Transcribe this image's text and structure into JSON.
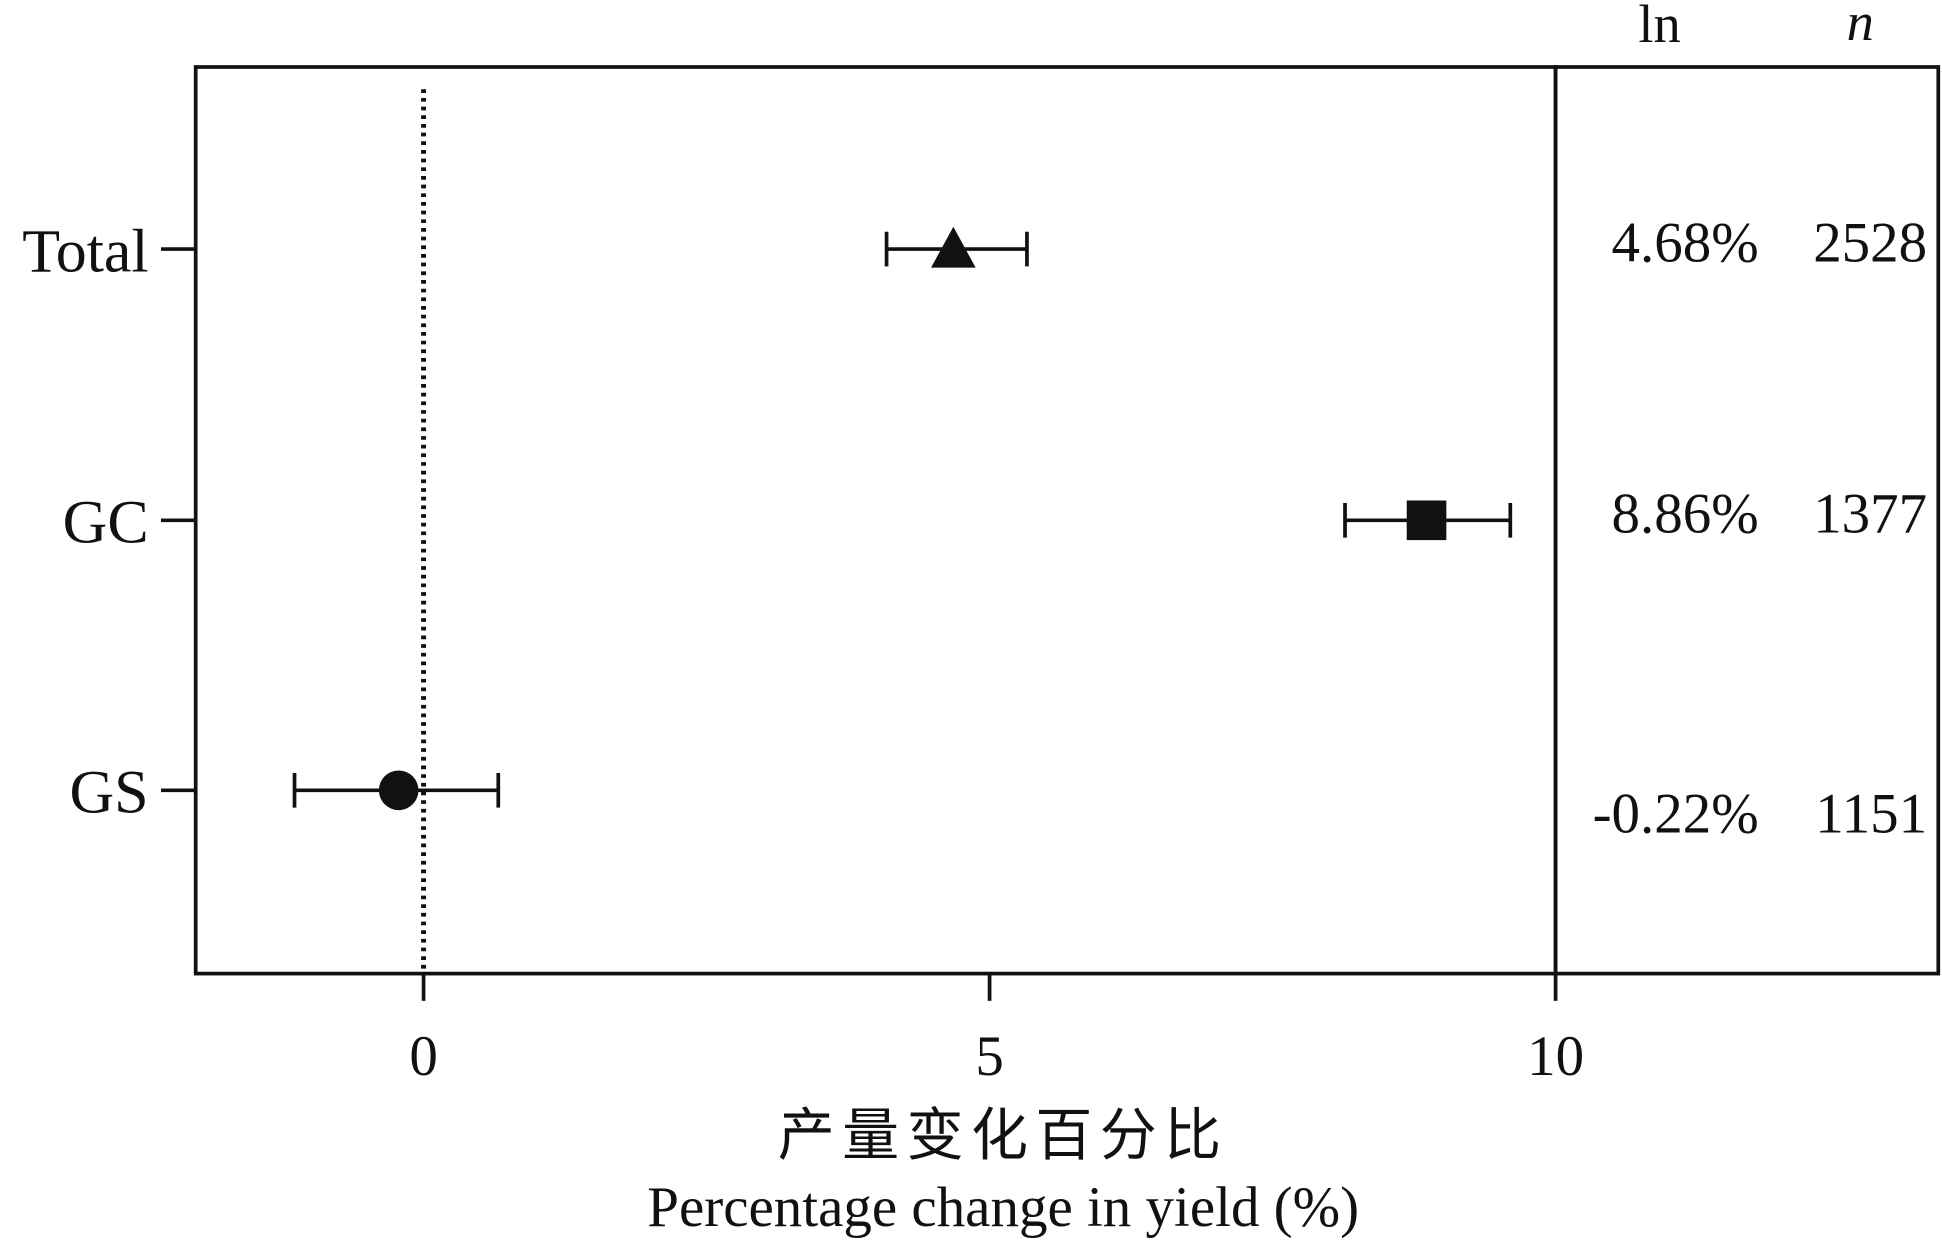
{
  "chart_data": {
    "type": "forest",
    "categories": [
      "Total",
      "GC",
      "GS"
    ],
    "series": [
      {
        "points": [
          {
            "category": "Total",
            "value": 4.68,
            "ci_low": 4.09,
            "ci_high": 5.33,
            "marker": "triangle",
            "ln_label": "4.68%",
            "n": "2528"
          },
          {
            "category": "GC",
            "value": 8.86,
            "ci_low": 8.14,
            "ci_high": 9.6,
            "marker": "square",
            "ln_label": "8.86%",
            "n": "1377"
          },
          {
            "category": "GS",
            "value": -0.22,
            "ci_low": -1.14,
            "ci_high": 0.66,
            "marker": "circle",
            "ln_label": "-0.22%",
            "n": "1151"
          }
        ]
      }
    ],
    "xlim": [
      -2,
      10
    ],
    "xticks": [
      "0",
      "5",
      "10"
    ],
    "xtick_values": [
      0,
      5,
      10
    ],
    "xlabel_cn": "产量变化百分比",
    "xlabel": "Percentage change in yield (%)",
    "reference_line": 0,
    "column_headers": {
      "ln": "ln",
      "n": "n"
    },
    "grid": false,
    "colors": {
      "marker": "#111111"
    }
  }
}
